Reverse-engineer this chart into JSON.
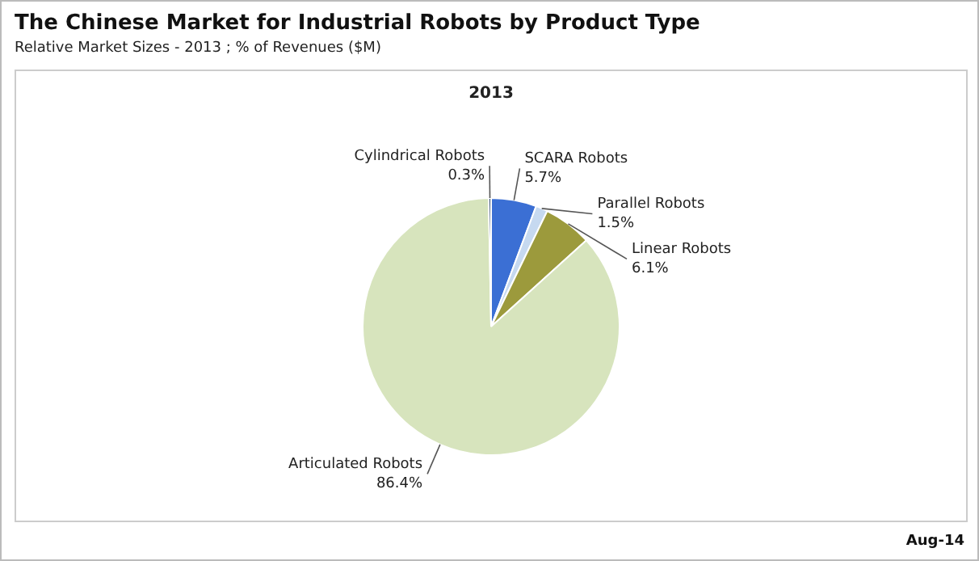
{
  "chart_data": {
    "type": "pie",
    "title": "The Chinese Market for Industrial Robots by Product Type",
    "subtitle": "Relative Market Sizes - 2013 ; % of Revenues ($M)",
    "xlabel": "2013",
    "categories": [
      "SCARA Robots",
      "Parallel Robots",
      "Linear Robots",
      "Articulated Robots",
      "Cylindrical Robots"
    ],
    "values": [
      5.7,
      1.5,
      6.1,
      86.4,
      0.3
    ],
    "colors": [
      "#3b6fd4",
      "#c6d9f0",
      "#9c9a3c",
      "#d7e4bd",
      "#1f3864"
    ],
    "value_labels": [
      "5.7%",
      "1.5%",
      "6.1%",
      "86.4%",
      "0.3%"
    ],
    "legend": false,
    "annotations": [
      "Aug-14"
    ]
  }
}
